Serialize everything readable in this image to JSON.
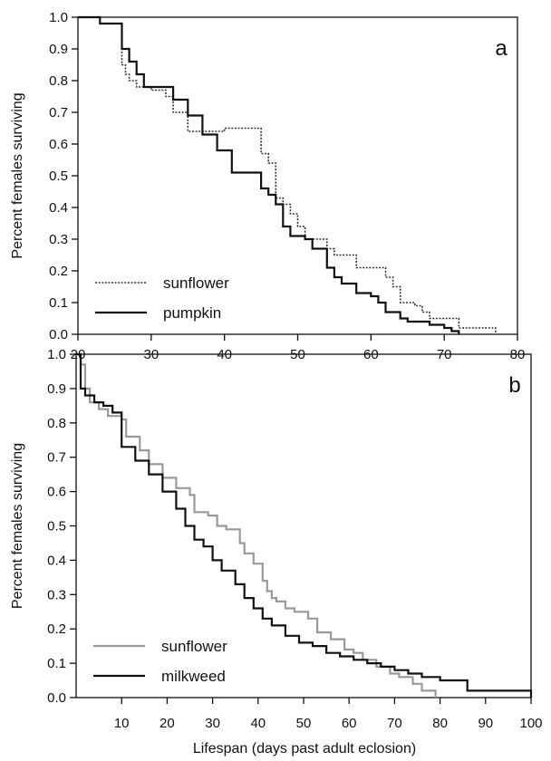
{
  "chart_data": [
    {
      "type": "line",
      "panel_label": "a",
      "ylabel": "Percent females surviving",
      "xlabel": "",
      "xlim": [
        20,
        80
      ],
      "ylim": [
        0,
        1.0
      ],
      "x_ticks": [
        "20",
        "30",
        "40",
        "50",
        "60",
        "70",
        "80"
      ],
      "y_ticks": [
        "0.0",
        "0.1",
        "0.2",
        "0.3",
        "0.4",
        "0.5",
        "0.6",
        "0.7",
        "0.8",
        "0.9",
        "1.0"
      ],
      "legend_placement": "bottom-left",
      "series": [
        {
          "name": "sunflower",
          "style": "dotted",
          "color": "#333333",
          "x": [
            20,
            23,
            26,
            26.5,
            27,
            28,
            30,
            32,
            33,
            35,
            39,
            40,
            45,
            46,
            47,
            48,
            49,
            50,
            51,
            54,
            55,
            58,
            62,
            63,
            64,
            66,
            67,
            68,
            70,
            72,
            77
          ],
          "y": [
            1.0,
            0.98,
            0.85,
            0.82,
            0.8,
            0.78,
            0.77,
            0.75,
            0.7,
            0.64,
            0.64,
            0.65,
            0.57,
            0.54,
            0.43,
            0.41,
            0.38,
            0.34,
            0.3,
            0.27,
            0.25,
            0.21,
            0.18,
            0.15,
            0.1,
            0.09,
            0.07,
            0.05,
            0.05,
            0.02,
            0.0
          ]
        },
        {
          "name": "pumpkin",
          "style": "solid",
          "color": "#111111",
          "x": [
            20,
            23,
            26,
            27,
            28,
            29,
            33,
            35,
            37,
            39,
            41,
            45,
            46,
            47,
            48,
            49,
            51,
            52,
            54,
            55,
            56,
            58,
            60,
            61,
            62,
            64,
            65,
            68,
            70,
            71,
            72
          ],
          "y": [
            1.0,
            0.98,
            0.9,
            0.86,
            0.82,
            0.78,
            0.74,
            0.69,
            0.63,
            0.58,
            0.51,
            0.46,
            0.44,
            0.41,
            0.34,
            0.31,
            0.3,
            0.27,
            0.21,
            0.18,
            0.16,
            0.13,
            0.12,
            0.1,
            0.07,
            0.05,
            0.04,
            0.03,
            0.02,
            0.01,
            0.0
          ]
        }
      ]
    },
    {
      "type": "line",
      "panel_label": "b",
      "ylabel": "Percent females surviving",
      "xlabel": "Lifespan (days past adult eclosion)",
      "xlim": [
        0,
        100
      ],
      "ylim": [
        0,
        1.0
      ],
      "x_ticks": [
        "10",
        "20",
        "30",
        "40",
        "50",
        "60",
        "70",
        "80",
        "90",
        "100"
      ],
      "y_ticks": [
        "0.0",
        "0.1",
        "0.2",
        "0.3",
        "0.4",
        "0.5",
        "0.6",
        "0.7",
        "0.8",
        "0.9",
        "1.0"
      ],
      "legend_placement": "bottom-left",
      "series": [
        {
          "name": "sunflower",
          "style": "solid",
          "color": "#999999",
          "x": [
            0,
            1,
            2,
            3,
            5,
            7,
            10,
            11,
            14,
            16,
            19,
            22,
            25,
            26,
            29,
            31,
            33,
            36,
            37,
            39,
            41,
            42,
            43,
            44,
            46,
            48,
            51,
            53,
            56,
            59,
            61,
            63,
            66,
            69,
            71,
            74,
            76,
            79
          ],
          "y": [
            1.0,
            0.97,
            0.9,
            0.86,
            0.84,
            0.82,
            0.81,
            0.76,
            0.72,
            0.68,
            0.64,
            0.61,
            0.59,
            0.54,
            0.53,
            0.5,
            0.49,
            0.45,
            0.42,
            0.39,
            0.34,
            0.31,
            0.29,
            0.28,
            0.26,
            0.25,
            0.23,
            0.19,
            0.17,
            0.14,
            0.13,
            0.11,
            0.09,
            0.07,
            0.06,
            0.04,
            0.02,
            0.0
          ]
        },
        {
          "name": "milkweed",
          "style": "solid",
          "color": "#111111",
          "x": [
            0,
            1,
            2,
            4,
            6,
            8,
            10,
            13,
            16,
            19,
            22,
            24,
            26,
            28,
            30,
            32,
            35,
            37,
            39,
            41,
            43,
            46,
            49,
            52,
            55,
            58,
            61,
            64,
            67,
            70,
            73,
            76,
            80,
            86,
            100
          ],
          "y": [
            1.0,
            0.9,
            0.88,
            0.86,
            0.85,
            0.83,
            0.73,
            0.69,
            0.65,
            0.6,
            0.55,
            0.5,
            0.46,
            0.44,
            0.4,
            0.37,
            0.33,
            0.29,
            0.26,
            0.23,
            0.21,
            0.18,
            0.16,
            0.15,
            0.13,
            0.12,
            0.11,
            0.1,
            0.09,
            0.08,
            0.07,
            0.06,
            0.05,
            0.02,
            0.0
          ]
        }
      ]
    }
  ]
}
